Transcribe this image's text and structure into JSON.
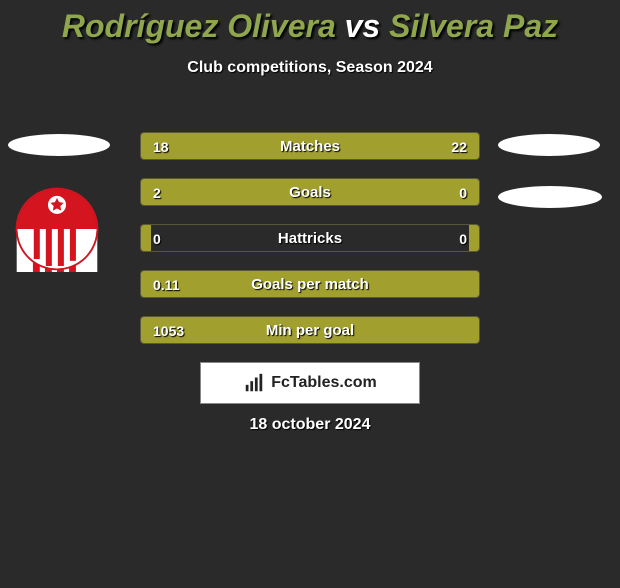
{
  "title": {
    "player1": "Rodríguez Olivera",
    "vs": "vs",
    "player2": "Silvera Paz",
    "color_player": "#8fa64d",
    "color_vs": "#ffffff"
  },
  "subtitle": "Club competitions, Season 2024",
  "bar_fill_color": "#a1a02e",
  "bar_border_color": "rgba(160,160,80,0.4)",
  "text_color": "#ffffff",
  "background_color": "#2a2a2a",
  "stats": [
    {
      "label": "Matches",
      "left_val": "18",
      "right_val": "22",
      "left_pct": 42,
      "right_pct": 58
    },
    {
      "label": "Goals",
      "left_val": "2",
      "right_val": "0",
      "left_pct": 77,
      "right_pct": 23
    },
    {
      "label": "Hattricks",
      "left_val": "0",
      "right_val": "0",
      "left_pct": 3,
      "right_pct": 3
    },
    {
      "label": "Goals per match",
      "left_val": "0.11",
      "right_val": "",
      "left_pct": 98,
      "right_pct": 2
    },
    {
      "label": "Min per goal",
      "left_val": "1053",
      "right_val": "",
      "left_pct": 98,
      "right_pct": 2
    }
  ],
  "logo": {
    "text": "FcTables.com"
  },
  "date": "18 october 2024",
  "badge": {
    "bg": "#ffffff",
    "red": "#d4141e"
  }
}
